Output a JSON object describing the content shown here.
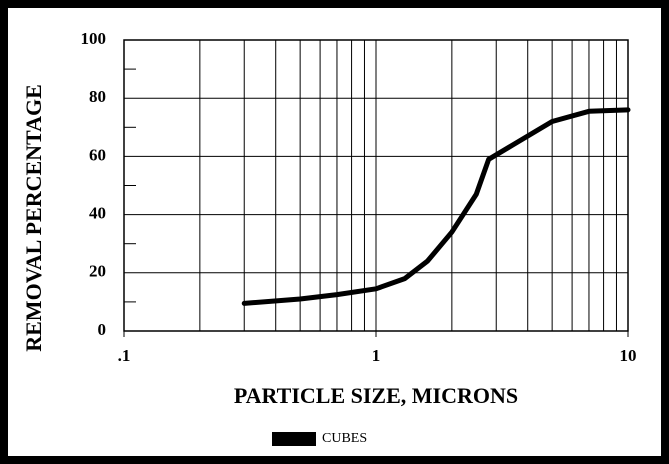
{
  "chart_data": {
    "type": "line",
    "x_label": "PARTICLE SIZE, MICRONS",
    "y_label": "REMOVAL PERCENTAGE",
    "x_log": true,
    "xlim": [
      0.1,
      10
    ],
    "xticks": [
      {
        "value": 0.1,
        "label": ".1"
      },
      1,
      10
    ],
    "x_minor_ticks": [
      0.2,
      0.3,
      0.4,
      0.5,
      0.6,
      0.7,
      0.8,
      0.9,
      2,
      3,
      4,
      5,
      6,
      7,
      8,
      9
    ],
    "ylim": [
      0,
      100
    ],
    "yticks": [
      0,
      20,
      40,
      60,
      80,
      100
    ],
    "y_minor_ticks": [
      10,
      30,
      50,
      70,
      90
    ],
    "grid": true,
    "legend_position": "bottom",
    "series": [
      {
        "name": "CUBES",
        "color": "#000000",
        "x": [
          0.3,
          0.5,
          0.7,
          1.0,
          1.3,
          1.6,
          2.0,
          2.5,
          2.8,
          3.5,
          5,
          7,
          10
        ],
        "values": [
          9.5,
          11,
          12.5,
          14.5,
          18,
          24,
          34,
          47,
          59,
          64,
          72,
          75.5,
          76
        ]
      }
    ]
  }
}
